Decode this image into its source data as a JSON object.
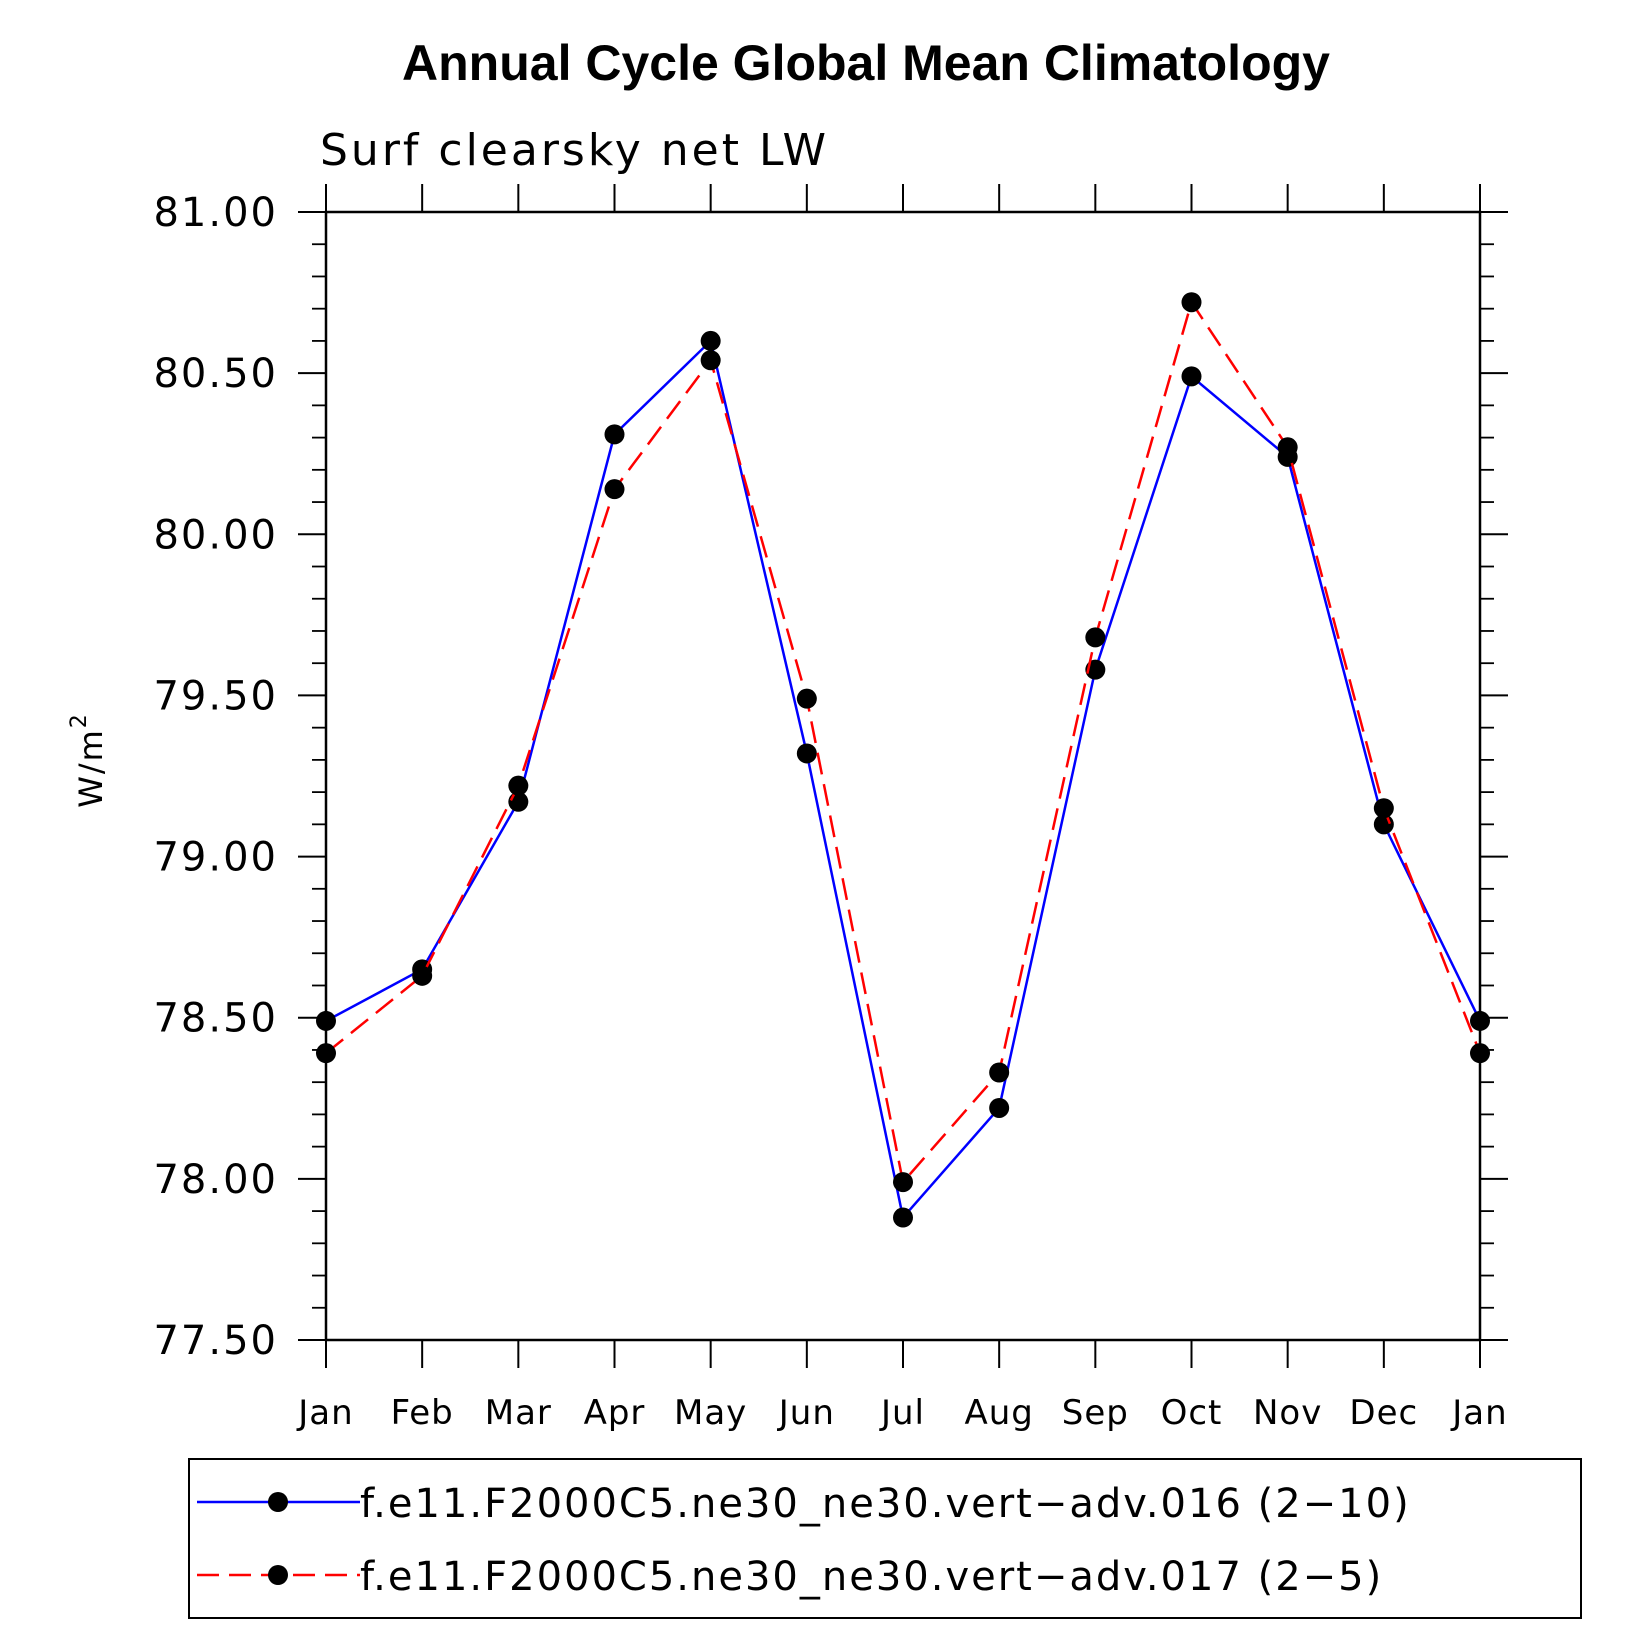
{
  "chart_data": {
    "type": "line",
    "title": "Annual Cycle Global Mean Climatology",
    "subtitle": "Surf clearsky net LW",
    "ylabel": "W/m",
    "ylabel_superscript": "2",
    "ylim": [
      77.5,
      81.0
    ],
    "yticks": [
      77.5,
      78.0,
      78.5,
      79.0,
      79.5,
      80.0,
      80.5,
      81.0
    ],
    "ytick_labels": [
      "77.50",
      "78.00",
      "78.50",
      "79.00",
      "79.50",
      "80.00",
      "80.50",
      "81.00"
    ],
    "categories": [
      "Jan",
      "Feb",
      "Mar",
      "Apr",
      "May",
      "Jun",
      "Jul",
      "Aug",
      "Sep",
      "Oct",
      "Nov",
      "Dec",
      "Jan"
    ],
    "grid": false,
    "legend_position": "bottom",
    "series": [
      {
        "name": "f.e11.F2000C5.ne30_ne30.vert−adv.016 (2−10)",
        "color": "#0000ff",
        "line_style": "solid",
        "marker": "filled-circle",
        "values": [
          78.49,
          78.65,
          79.17,
          80.31,
          80.6,
          79.32,
          77.88,
          78.22,
          79.58,
          80.49,
          80.24,
          79.1,
          78.49
        ]
      },
      {
        "name": "f.e11.F2000C5.ne30_ne30.vert−adv.017 (2−5)",
        "color": "#ff0000",
        "line_style": "dashed",
        "marker": "filled-circle",
        "values": [
          78.39,
          78.63,
          79.22,
          80.14,
          80.54,
          79.49,
          77.99,
          78.33,
          79.68,
          80.72,
          80.27,
          79.15,
          78.39
        ]
      }
    ]
  }
}
